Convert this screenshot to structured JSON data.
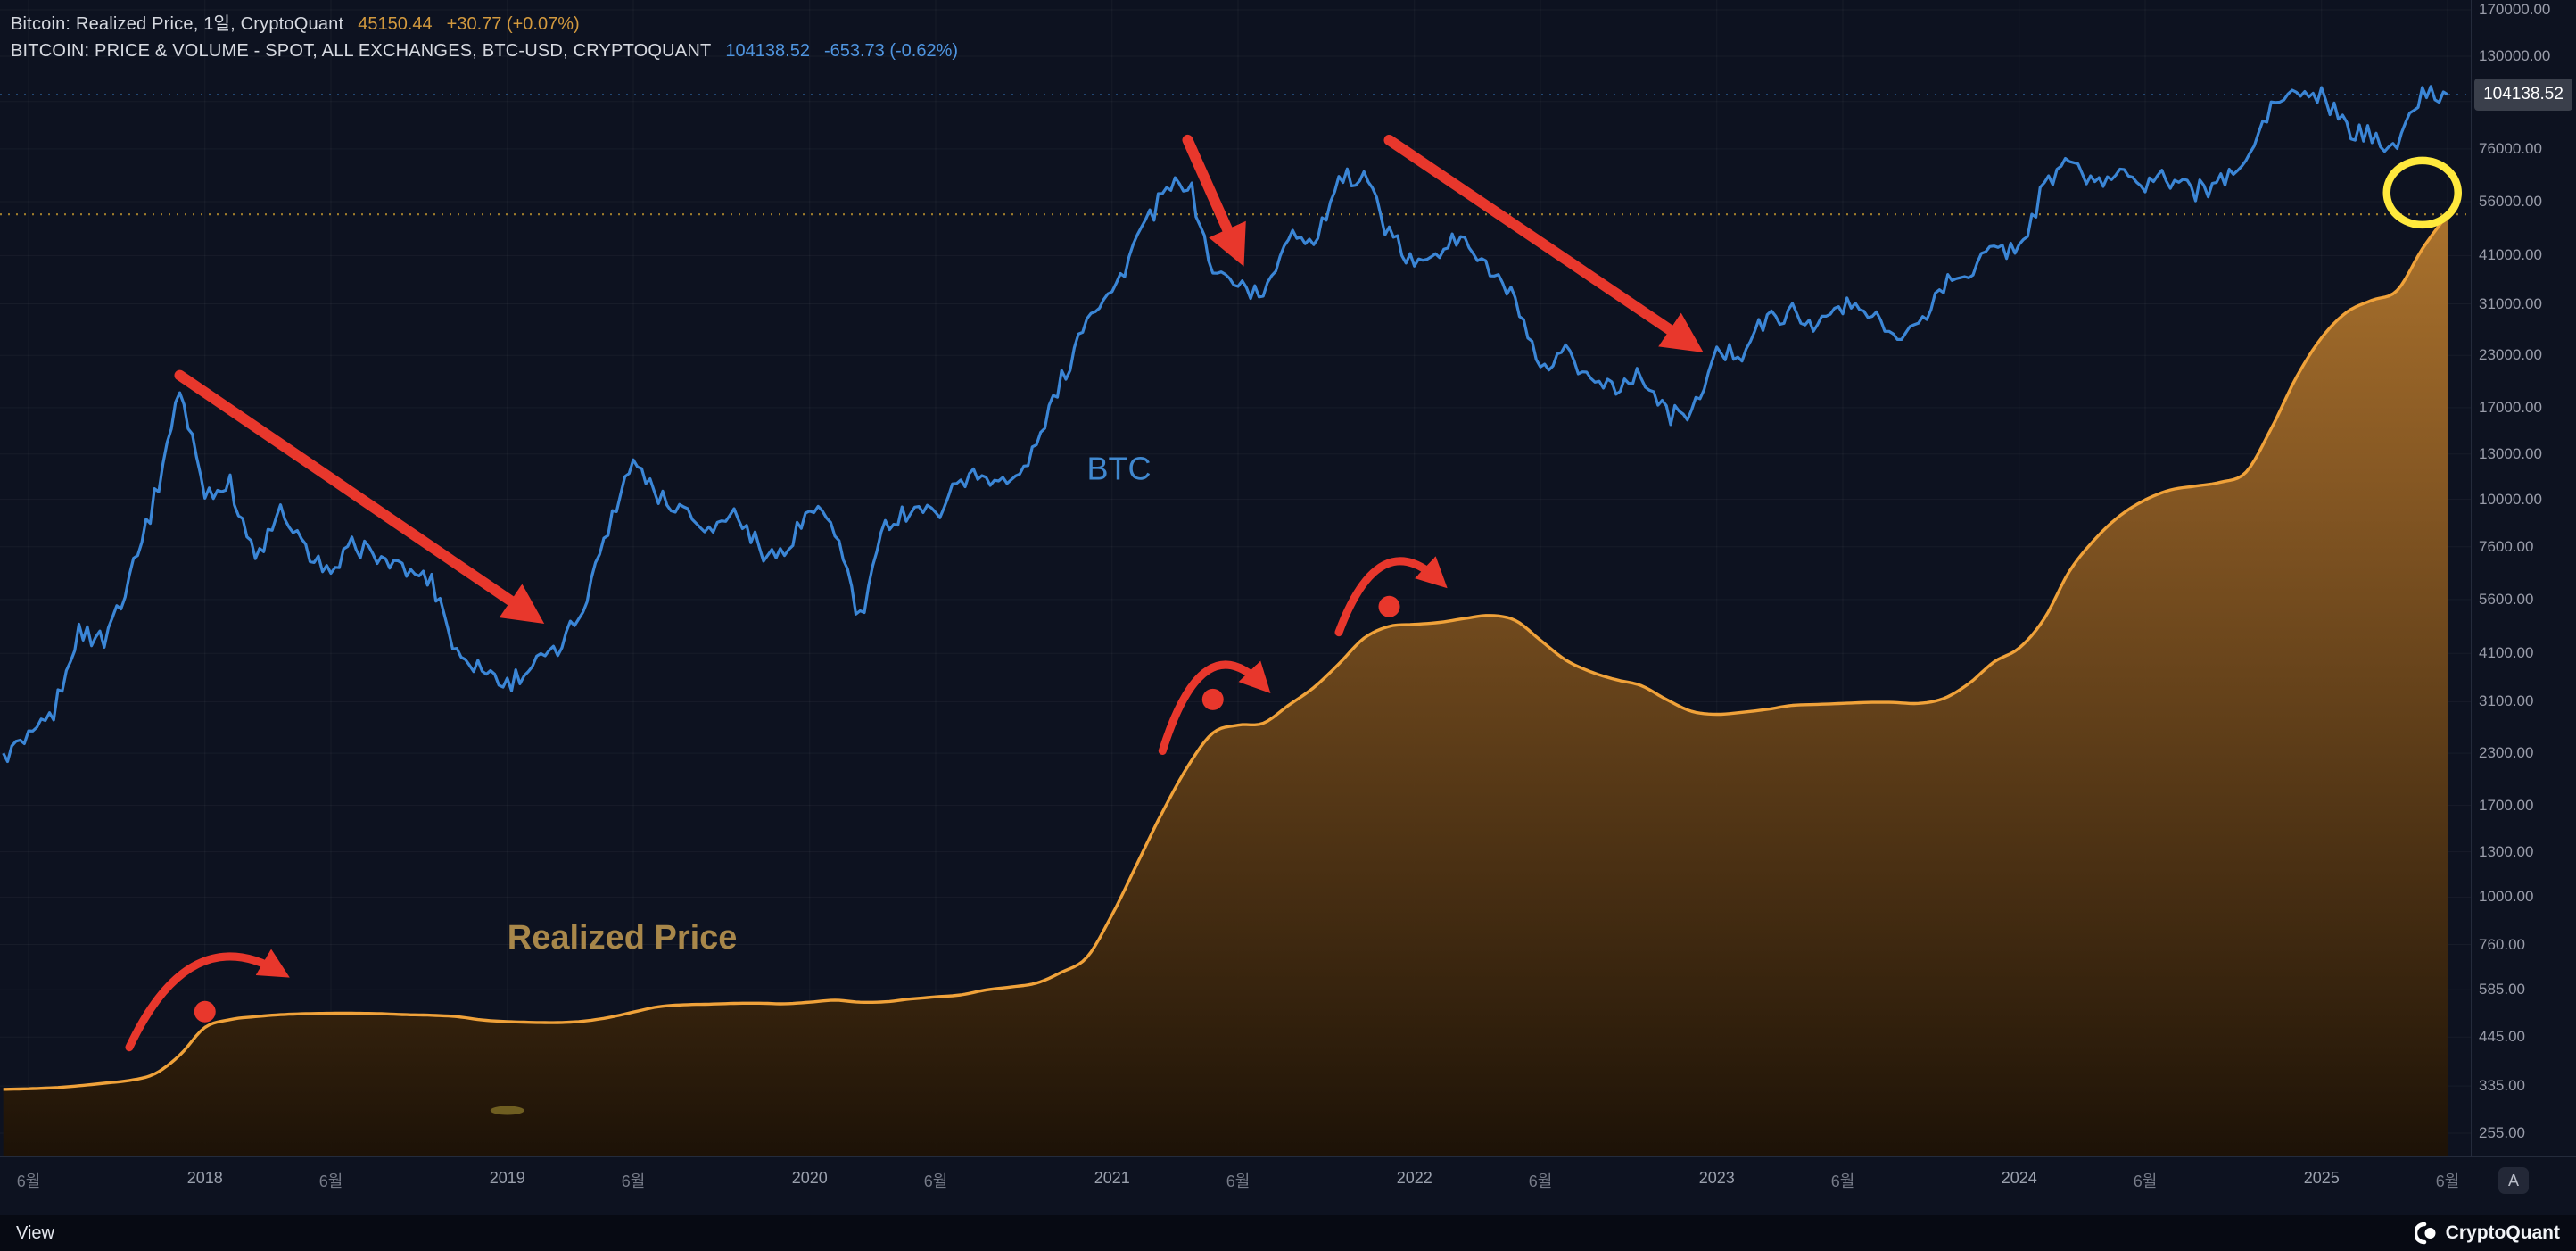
{
  "header": {
    "row1": {
      "title": "Bitcoin: Realized Price, 1일, CryptoQuant",
      "price": "45150.44",
      "change": "+30.77 (+0.07%)"
    },
    "row2": {
      "title": "BITCOIN: PRICE & VOLUME - SPOT, ALL EXCHANGES, BTC-USD, CRYPTOQUANT",
      "price": "104138.52",
      "change": "-653.73 (-0.62%)"
    }
  },
  "price_badge": "104138.52",
  "axis_button": "A",
  "footer": {
    "view_label": "View",
    "brand": "CryptoQuant"
  },
  "colors": {
    "background": "#0d1220",
    "btc_line": "#3b86d6",
    "btc_text": "#4f95e0",
    "btc_label": "#4088cf",
    "realized_line": "#f0a23a",
    "realized_text": "#d2993e",
    "realized_label": "#a8874a",
    "area_top": "#cc8a35",
    "area_mid": "#8a5a23",
    "area_bottom": "#1d1206",
    "annotation_red": "#e8372c",
    "highlight_yellow": "#ffe93d",
    "dotted_realized": "#b08a2e",
    "dotted_btc": "#3b86d6",
    "axis_text": "#9a9daa",
    "badge_bg": "#3a3f4b",
    "badge_text": "#ffffff"
  },
  "chart_data": {
    "type": "line",
    "title": "",
    "x_axis": "time (monthly, Jun 2017 - Jun 2025)",
    "scales": {
      "btc": {
        "type": "log",
        "min": 255,
        "max": 170000
      },
      "realized": {
        "type": "linear",
        "min": -1350,
        "max": 55500
      }
    },
    "y_ticks": [
      255,
      335,
      445,
      585,
      760,
      1000,
      1300,
      1700,
      2300,
      3100,
      4100,
      5600,
      7600,
      10000,
      13000,
      17000,
      23000,
      31000,
      41000,
      56000,
      76000,
      100000,
      130000,
      170000
    ],
    "x_ticks": [
      {
        "x": "2017-06",
        "label": "6월",
        "kind": "month"
      },
      {
        "x": "2018-01",
        "label": "2018",
        "kind": "year"
      },
      {
        "x": "2018-06",
        "label": "6월",
        "kind": "month"
      },
      {
        "x": "2019-01",
        "label": "2019",
        "kind": "year"
      },
      {
        "x": "2019-06",
        "label": "6월",
        "kind": "month"
      },
      {
        "x": "2020-01",
        "label": "2020",
        "kind": "year"
      },
      {
        "x": "2020-06",
        "label": "6월",
        "kind": "month"
      },
      {
        "x": "2021-01",
        "label": "2021",
        "kind": "year"
      },
      {
        "x": "2021-06",
        "label": "6월",
        "kind": "month"
      },
      {
        "x": "2022-01",
        "label": "2022",
        "kind": "year"
      },
      {
        "x": "2022-06",
        "label": "6월",
        "kind": "month"
      },
      {
        "x": "2023-01",
        "label": "2023",
        "kind": "year"
      },
      {
        "x": "2023-06",
        "label": "6월",
        "kind": "month"
      },
      {
        "x": "2024-01",
        "label": "2024",
        "kind": "year"
      },
      {
        "x": "2024-06",
        "label": "6월",
        "kind": "month"
      },
      {
        "x": "2025-01",
        "label": "2025",
        "kind": "year"
      },
      {
        "x": "2025-06",
        "label": "6월",
        "kind": "month"
      }
    ],
    "x": [
      "2017-05",
      "2017-06",
      "2017-07",
      "2017-08",
      "2017-09",
      "2017-10",
      "2017-11",
      "2017-12",
      "2018-01",
      "2018-02",
      "2018-03",
      "2018-04",
      "2018-05",
      "2018-06",
      "2018-07",
      "2018-08",
      "2018-09",
      "2018-10",
      "2018-11",
      "2018-12",
      "2019-01",
      "2019-02",
      "2019-03",
      "2019-04",
      "2019-05",
      "2019-06",
      "2019-07",
      "2019-08",
      "2019-09",
      "2019-10",
      "2019-11",
      "2019-12",
      "2020-01",
      "2020-02",
      "2020-03",
      "2020-04",
      "2020-05",
      "2020-06",
      "2020-07",
      "2020-08",
      "2020-09",
      "2020-10",
      "2020-11",
      "2020-12",
      "2021-01",
      "2021-02",
      "2021-03",
      "2021-04",
      "2021-05",
      "2021-06",
      "2021-07",
      "2021-08",
      "2021-09",
      "2021-10",
      "2021-11",
      "2021-12",
      "2022-01",
      "2022-02",
      "2022-03",
      "2022-04",
      "2022-05",
      "2022-06",
      "2022-07",
      "2022-08",
      "2022-09",
      "2022-10",
      "2022-11",
      "2022-12",
      "2023-01",
      "2023-02",
      "2023-03",
      "2023-04",
      "2023-05",
      "2023-06",
      "2023-07",
      "2023-08",
      "2023-09",
      "2023-10",
      "2023-11",
      "2023-12",
      "2024-01",
      "2024-02",
      "2024-03",
      "2024-04",
      "2024-05",
      "2024-06",
      "2024-07",
      "2024-08",
      "2024-09",
      "2024-10",
      "2024-11",
      "2024-12",
      "2025-01",
      "2025-02",
      "2025-03",
      "2025-04",
      "2025-05",
      "2025-06"
    ],
    "series": [
      {
        "name": "BTC",
        "scale": "btc",
        "style": "jagged-line",
        "values": [
          2300,
          2500,
          2875,
          4700,
          4350,
          6450,
          9900,
          19000,
          10200,
          11000,
          7000,
          9250,
          7500,
          6400,
          7750,
          7000,
          6600,
          6350,
          4050,
          3750,
          3450,
          3850,
          4100,
          5300,
          8550,
          12800,
          10100,
          9600,
          8300,
          9150,
          7550,
          7200,
          9350,
          8550,
          4900,
          8650,
          9450,
          9150,
          11350,
          11650,
          10800,
          13800,
          19700,
          29000,
          33100,
          45200,
          58800,
          63500,
          37300,
          35000,
          32000,
          47000,
          43800,
          61300,
          67500,
          46200,
          38500,
          43200,
          45500,
          37700,
          31800,
          20100,
          23300,
          20050,
          19400,
          20500,
          16500,
          16550,
          23100,
          23500,
          28500,
          29250,
          27200,
          30450,
          29250,
          26000,
          26950,
          34650,
          37700,
          42250,
          42550,
          61200,
          71300,
          60600,
          67500,
          62700,
          64600,
          59000,
          63300,
          70200,
          96400,
          104000,
          102400,
          84400,
          82500,
          77000,
          104600,
          104138.52
        ]
      },
      {
        "name": "Realized Price",
        "scale": "realized",
        "style": "smooth-area",
        "values": [
          870,
          900,
          950,
          1050,
          1180,
          1320,
          1650,
          2600,
          4000,
          4400,
          4550,
          4650,
          4700,
          4720,
          4720,
          4700,
          4650,
          4620,
          4550,
          4380,
          4300,
          4260,
          4250,
          4320,
          4500,
          4780,
          5050,
          5150,
          5180,
          5220,
          5230,
          5200,
          5280,
          5380,
          5280,
          5300,
          5440,
          5550,
          5650,
          5900,
          6050,
          6250,
          6800,
          7550,
          9700,
          12300,
          14900,
          17200,
          18900,
          19300,
          19400,
          20300,
          21200,
          22400,
          23700,
          24300,
          24400,
          24500,
          24700,
          24850,
          24600,
          23600,
          22600,
          22000,
          21600,
          21300,
          20600,
          20000,
          19850,
          19950,
          20100,
          20300,
          20350,
          20400,
          20450,
          20450,
          20400,
          20650,
          21400,
          22500,
          23200,
          24700,
          27100,
          28700,
          29900,
          30700,
          31200,
          31400,
          31600,
          32100,
          34300,
          36900,
          38900,
          40200,
          40800,
          41300,
          43400,
          45150.44
        ]
      }
    ],
    "series_labels": [
      {
        "text": "BTC",
        "x": "2020-12",
        "v": 11200,
        "scale": "btc",
        "color_key": "btc_label",
        "size": 36,
        "weight": 400
      },
      {
        "text": "Realized Price",
        "x": "2019-01",
        "v": 8000,
        "scale": "realized",
        "color_key": "realized_label",
        "size": 38,
        "weight": 700
      }
    ],
    "annotations": {
      "arrows": [
        {
          "scale": "btc",
          "from": {
            "x": "2017-12",
            "v": 20500
          },
          "to": {
            "x": "2019-02",
            "v": 5100
          }
        },
        {
          "scale": "btc",
          "from": {
            "x": "2021-04",
            "v": 80000
          },
          "to": {
            "x": "2021-06",
            "v": 41500
          }
        },
        {
          "scale": "btc",
          "from": {
            "x": "2021-12",
            "v": 80000
          },
          "to": {
            "x": "2022-12",
            "v": 24500
          }
        }
      ],
      "curved_arrows": [
        {
          "scale": "realized",
          "from": {
            "x": "2017-10",
            "v": 3000
          },
          "to": {
            "x": "2018-04",
            "v": 6800
          },
          "peak": 9500
        },
        {
          "scale": "realized",
          "from": {
            "x": "2021-03",
            "v": 18000
          },
          "to": {
            "x": "2021-07",
            "v": 21300
          },
          "peak": 24500
        },
        {
          "scale": "realized",
          "from": {
            "x": "2021-10",
            "v": 24000
          },
          "to": {
            "x": "2022-02",
            "v": 26600
          },
          "peak": 29500
        }
      ],
      "dots": [
        {
          "scale": "realized",
          "x": "2018-01",
          "v": 4800
        },
        {
          "scale": "realized",
          "x": "2021-05",
          "v": 20600
        },
        {
          "scale": "realized",
          "x": "2021-12",
          "v": 25300
        }
      ],
      "highlight_circle": {
        "scale": "btc",
        "x": "2025-05",
        "v": 59000,
        "rx": 40,
        "ry": 36
      },
      "small_mark": {
        "scale": "realized",
        "x": "2019-01",
        "v": -200,
        "rx": 19,
        "ry": 5
      }
    },
    "legend_position": "top-left",
    "grid": "faint"
  }
}
